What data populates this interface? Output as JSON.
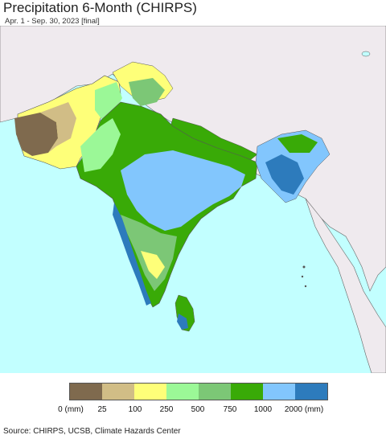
{
  "header": {
    "title": "Precipitation 6-Month (CHIRPS)",
    "subtitle": "Apr. 1 - Sep. 30, 2023 [final]"
  },
  "map": {
    "ocean_color": "#c2ffff",
    "land_other_color": "#efeaee",
    "border_color": "#555555"
  },
  "legend": {
    "colors": [
      "#7f6a4e",
      "#d1bd86",
      "#feff79",
      "#9bf897",
      "#7cc776",
      "#39aa07",
      "#82c6fd",
      "#2d7bbc"
    ],
    "labels": [
      "0 (mm)",
      "25",
      "100",
      "250",
      "500",
      "750",
      "1000",
      "2000 (mm)"
    ]
  },
  "footer": {
    "source": "Source: CHIRPS, UCSB, Climate Hazards Center"
  }
}
